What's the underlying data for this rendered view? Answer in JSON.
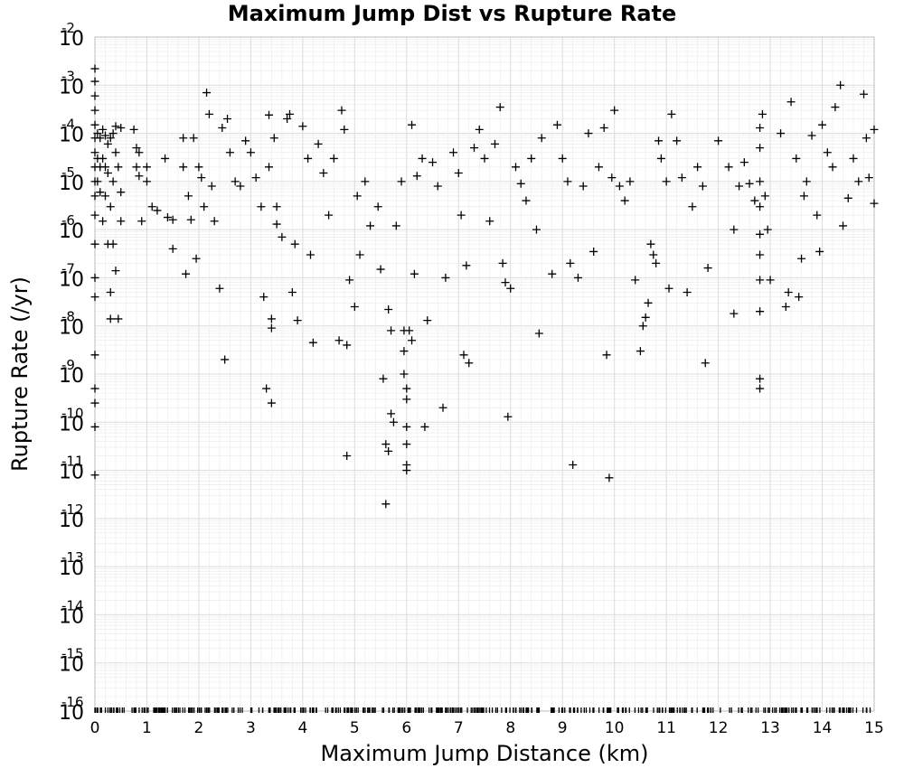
{
  "chart_data": {
    "type": "scatter",
    "title": "Maximum Jump Dist vs Rupture Rate",
    "xlabel": "Maximum Jump Distance (km)",
    "ylabel": "Rupture Rate (/yr)",
    "xlim": [
      0,
      15
    ],
    "ylim": [
      1e-16,
      0.01
    ],
    "y_scale": "log",
    "grid": true,
    "marker": "plus",
    "marker_color": "#000000",
    "x_ticks": [
      "0",
      "1",
      "2",
      "3",
      "4",
      "5",
      "6",
      "7",
      "8",
      "9",
      "10",
      "11",
      "12",
      "13",
      "14",
      "15"
    ],
    "y_ticks": [
      {
        "base": "10",
        "exp": "-2"
      },
      {
        "base": "10",
        "exp": "-3"
      },
      {
        "base": "10",
        "exp": "-4"
      },
      {
        "base": "10",
        "exp": "-5"
      },
      {
        "base": "10",
        "exp": "-6"
      },
      {
        "base": "10",
        "exp": "-7"
      },
      {
        "base": "10",
        "exp": "-8"
      },
      {
        "base": "10",
        "exp": "-9"
      },
      {
        "base": "10",
        "exp": "-10"
      },
      {
        "base": "10",
        "exp": "-11"
      },
      {
        "base": "10",
        "exp": "-12"
      },
      {
        "base": "10",
        "exp": "-13"
      },
      {
        "base": "10",
        "exp": "-14"
      },
      {
        "base": "10",
        "exp": "-15"
      },
      {
        "base": "10",
        "exp": "-16"
      }
    ],
    "series": [
      {
        "points": [
          [
            0.0,
            0.0022
          ],
          [
            0.0,
            0.0012
          ],
          [
            0.0,
            0.0006
          ],
          [
            0.0,
            0.0003
          ],
          [
            0.0,
            0.00015
          ],
          [
            0.0,
            8e-05
          ],
          [
            0.0,
            4e-05
          ],
          [
            0.0,
            2e-05
          ],
          [
            0.0,
            1e-05
          ],
          [
            0.0,
            5e-06
          ],
          [
            0.0,
            2e-06
          ],
          [
            0.0,
            5e-07
          ],
          [
            0.0,
            1e-07
          ],
          [
            0.0,
            4e-08
          ],
          [
            0.0,
            2.5e-09
          ],
          [
            0.0,
            5e-10
          ],
          [
            0.0,
            2.5e-10
          ],
          [
            0.0,
            8e-11
          ],
          [
            0.0,
            8e-12
          ],
          [
            0.05,
            0.0001
          ],
          [
            0.05,
            3e-05
          ],
          [
            0.05,
            1e-05
          ],
          [
            0.1,
            8e-05
          ],
          [
            0.1,
            2e-05
          ],
          [
            0.1,
            6e-06
          ],
          [
            0.15,
            0.00012
          ],
          [
            0.15,
            3e-05
          ],
          [
            0.15,
            1.5e-06
          ],
          [
            0.2,
            9e-05
          ],
          [
            0.2,
            2e-05
          ],
          [
            0.2,
            5e-06
          ],
          [
            0.25,
            6e-05
          ],
          [
            0.25,
            1.5e-05
          ],
          [
            0.25,
            5e-07
          ],
          [
            0.3,
            8e-05
          ],
          [
            0.3,
            3e-06
          ],
          [
            0.3,
            5e-08
          ],
          [
            0.3,
            1.4e-08
          ],
          [
            0.35,
            0.0001
          ],
          [
            0.35,
            1e-05
          ],
          [
            0.35,
            5e-07
          ],
          [
            0.4,
            0.00014
          ],
          [
            0.4,
            4e-05
          ],
          [
            0.4,
            1.4e-07
          ],
          [
            0.45,
            2e-05
          ],
          [
            0.45,
            1.4e-08
          ],
          [
            0.5,
            0.00013
          ],
          [
            0.5,
            6e-06
          ],
          [
            0.5,
            1.5e-06
          ],
          [
            0.75,
            0.00012
          ],
          [
            0.8,
            5e-05
          ],
          [
            0.8,
            2e-05
          ],
          [
            0.85,
            4e-05
          ],
          [
            0.85,
            1.3e-05
          ],
          [
            0.9,
            1.5e-06
          ],
          [
            1.0,
            2e-05
          ],
          [
            1.0,
            1e-05
          ],
          [
            1.1,
            3e-06
          ],
          [
            1.2,
            2.5e-06
          ],
          [
            1.35,
            3e-05
          ],
          [
            1.4,
            1.8e-06
          ],
          [
            1.5,
            4e-07
          ],
          [
            1.5,
            1.6e-06
          ],
          [
            1.7,
            8e-05
          ],
          [
            1.7,
            2e-05
          ],
          [
            1.75,
            1.2e-07
          ],
          [
            1.8,
            5e-06
          ],
          [
            1.85,
            1.6e-06
          ],
          [
            1.9,
            8e-05
          ],
          [
            1.95,
            2.5e-07
          ],
          [
            2.0,
            2e-05
          ],
          [
            2.05,
            1.2e-05
          ],
          [
            2.1,
            3e-06
          ],
          [
            2.15,
            0.0007
          ],
          [
            2.2,
            0.00025
          ],
          [
            2.25,
            8e-06
          ],
          [
            2.3,
            1.5e-06
          ],
          [
            2.4,
            6e-08
          ],
          [
            2.45,
            0.00013
          ],
          [
            2.5,
            2e-09
          ],
          [
            2.55,
            0.0002
          ],
          [
            2.6,
            4e-05
          ],
          [
            2.7,
            1e-05
          ],
          [
            2.8,
            8e-06
          ],
          [
            2.9,
            7e-05
          ],
          [
            3.0,
            4e-05
          ],
          [
            3.1,
            1.2e-05
          ],
          [
            3.2,
            3e-06
          ],
          [
            3.25,
            4e-08
          ],
          [
            3.3,
            5e-10
          ],
          [
            3.35,
            0.00024
          ],
          [
            3.35,
            2e-05
          ],
          [
            3.4,
            2.5e-10
          ],
          [
            3.4,
            1.4e-08
          ],
          [
            3.4,
            9e-09
          ],
          [
            3.45,
            8e-05
          ],
          [
            3.5,
            3e-06
          ],
          [
            3.5,
            1.3e-06
          ],
          [
            3.6,
            7e-07
          ],
          [
            3.7,
            0.0002
          ],
          [
            3.75,
            0.00025
          ],
          [
            3.8,
            5e-08
          ],
          [
            3.85,
            5e-07
          ],
          [
            3.9,
            1.3e-08
          ],
          [
            4.0,
            0.00014
          ],
          [
            4.1,
            3e-05
          ],
          [
            4.15,
            3e-07
          ],
          [
            4.2,
            4.5e-09
          ],
          [
            4.3,
            6e-05
          ],
          [
            4.4,
            1.5e-05
          ],
          [
            4.5,
            2e-06
          ],
          [
            4.6,
            3e-05
          ],
          [
            4.7,
            5e-09
          ],
          [
            4.75,
            0.0003
          ],
          [
            4.8,
            0.00012
          ],
          [
            4.85,
            4e-09
          ],
          [
            4.85,
            2e-11
          ],
          [
            4.9,
            9e-08
          ],
          [
            5.0,
            2.5e-08
          ],
          [
            5.05,
            5e-06
          ],
          [
            5.1,
            3e-07
          ],
          [
            5.2,
            1e-05
          ],
          [
            5.3,
            1.2e-06
          ],
          [
            5.45,
            3e-06
          ],
          [
            5.5,
            1.5e-07
          ],
          [
            5.55,
            8e-10
          ],
          [
            5.6,
            3.5e-11
          ],
          [
            5.6,
            2e-12
          ],
          [
            5.65,
            2.5e-11
          ],
          [
            5.65,
            2.2e-08
          ],
          [
            5.7,
            1.5e-10
          ],
          [
            5.7,
            8e-09
          ],
          [
            5.75,
            1e-10
          ],
          [
            5.8,
            1.2e-06
          ],
          [
            5.9,
            1e-05
          ],
          [
            5.95,
            8e-09
          ],
          [
            5.95,
            3e-09
          ],
          [
            5.95,
            1e-09
          ],
          [
            6.0,
            5e-10
          ],
          [
            6.0,
            3e-10
          ],
          [
            6.0,
            8e-11
          ],
          [
            6.0,
            3.5e-11
          ],
          [
            6.0,
            1.3e-11
          ],
          [
            6.0,
            1e-11
          ],
          [
            6.05,
            8e-09
          ],
          [
            6.1,
            5e-09
          ],
          [
            6.1,
            0.00015
          ],
          [
            6.15,
            1.2e-07
          ],
          [
            6.2,
            1.3e-05
          ],
          [
            6.3,
            3e-05
          ],
          [
            6.35,
            8e-11
          ],
          [
            6.4,
            1.3e-08
          ],
          [
            6.5,
            2.5e-05
          ],
          [
            6.6,
            8e-06
          ],
          [
            6.7,
            2e-10
          ],
          [
            6.75,
            1e-07
          ],
          [
            6.9,
            4e-05
          ],
          [
            7.0,
            1.5e-05
          ],
          [
            7.05,
            2e-06
          ],
          [
            7.1,
            2.5e-09
          ],
          [
            7.15,
            1.8e-07
          ],
          [
            7.2,
            1.7e-09
          ],
          [
            7.3,
            5e-05
          ],
          [
            7.4,
            0.00012
          ],
          [
            7.5,
            3e-05
          ],
          [
            7.6,
            1.5e-06
          ],
          [
            7.7,
            6e-05
          ],
          [
            7.8,
            0.00035
          ],
          [
            7.85,
            2e-07
          ],
          [
            7.9,
            8e-08
          ],
          [
            7.95,
            1.3e-10
          ],
          [
            8.0,
            6e-08
          ],
          [
            8.1,
            2e-05
          ],
          [
            8.2,
            9e-06
          ],
          [
            8.3,
            4e-06
          ],
          [
            8.4,
            3e-05
          ],
          [
            8.5,
            1e-06
          ],
          [
            8.55,
            7e-09
          ],
          [
            8.6,
            8e-05
          ],
          [
            8.8,
            1.2e-07
          ],
          [
            8.9,
            0.00015
          ],
          [
            9.0,
            3e-05
          ],
          [
            9.1,
            1e-05
          ],
          [
            9.15,
            2e-07
          ],
          [
            9.2,
            1.3e-11
          ],
          [
            9.3,
            1e-07
          ],
          [
            9.4,
            8e-06
          ],
          [
            9.5,
            0.0001
          ],
          [
            9.6,
            3.5e-07
          ],
          [
            9.7,
            2e-05
          ],
          [
            9.8,
            0.00013
          ],
          [
            9.85,
            2.5e-09
          ],
          [
            9.9,
            7e-12
          ],
          [
            9.95,
            1.2e-05
          ],
          [
            10.0,
            0.0003
          ],
          [
            10.1,
            8e-06
          ],
          [
            10.2,
            4e-06
          ],
          [
            10.3,
            1e-05
          ],
          [
            10.4,
            9e-08
          ],
          [
            10.5,
            3e-09
          ],
          [
            10.55,
            1e-08
          ],
          [
            10.6,
            1.5e-08
          ],
          [
            10.65,
            3e-08
          ],
          [
            10.7,
            5e-07
          ],
          [
            10.75,
            3e-07
          ],
          [
            10.8,
            2e-07
          ],
          [
            10.85,
            7e-05
          ],
          [
            10.9,
            3e-05
          ],
          [
            11.0,
            1e-05
          ],
          [
            11.05,
            6e-08
          ],
          [
            11.1,
            0.00025
          ],
          [
            11.2,
            7e-05
          ],
          [
            11.3,
            1.2e-05
          ],
          [
            11.4,
            5e-08
          ],
          [
            11.5,
            3e-06
          ],
          [
            11.6,
            2e-05
          ],
          [
            11.7,
            8e-06
          ],
          [
            11.75,
            1.7e-09
          ],
          [
            11.8,
            1.6e-07
          ],
          [
            12.0,
            7e-05
          ],
          [
            12.2,
            2e-05
          ],
          [
            12.3,
            1e-06
          ],
          [
            12.3,
            1.8e-08
          ],
          [
            12.4,
            8e-06
          ],
          [
            12.5,
            2.5e-05
          ],
          [
            12.6,
            9e-06
          ],
          [
            12.7,
            4e-06
          ],
          [
            12.8,
            0.00013
          ],
          [
            12.8,
            5e-05
          ],
          [
            12.8,
            1e-05
          ],
          [
            12.8,
            3e-06
          ],
          [
            12.8,
            8e-07
          ],
          [
            12.8,
            3e-07
          ],
          [
            12.8,
            9e-08
          ],
          [
            12.8,
            2e-08
          ],
          [
            12.8,
            8e-10
          ],
          [
            12.8,
            5e-10
          ],
          [
            12.85,
            0.00025
          ],
          [
            12.9,
            5e-06
          ],
          [
            12.95,
            1e-06
          ],
          [
            13.0,
            9e-08
          ],
          [
            13.2,
            0.0001
          ],
          [
            13.3,
            2.5e-08
          ],
          [
            13.35,
            5e-08
          ],
          [
            13.4,
            0.00045
          ],
          [
            13.5,
            3e-05
          ],
          [
            13.55,
            4e-08
          ],
          [
            13.6,
            2.5e-07
          ],
          [
            13.65,
            5e-06
          ],
          [
            13.7,
            1e-05
          ],
          [
            13.8,
            9e-05
          ],
          [
            13.9,
            2e-06
          ],
          [
            13.95,
            3.5e-07
          ],
          [
            14.0,
            0.00015
          ],
          [
            14.1,
            4e-05
          ],
          [
            14.2,
            2e-05
          ],
          [
            14.25,
            0.00035
          ],
          [
            14.35,
            0.001
          ],
          [
            14.4,
            1.2e-06
          ],
          [
            14.5,
            4.5e-06
          ],
          [
            14.6,
            3e-05
          ],
          [
            14.7,
            1e-05
          ],
          [
            14.8,
            0.00065
          ],
          [
            14.85,
            8e-05
          ],
          [
            14.9,
            1.2e-05
          ],
          [
            15.0,
            0.00012
          ],
          [
            15.0,
            3.5e-06
          ]
        ]
      }
    ]
  }
}
